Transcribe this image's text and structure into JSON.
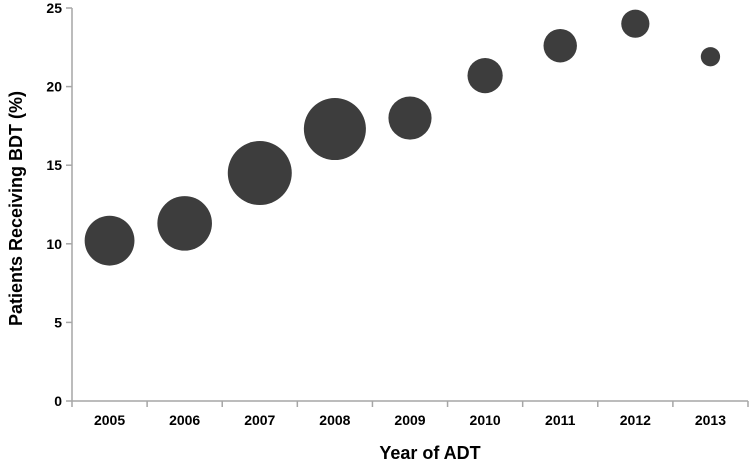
{
  "chart_data": {
    "type": "scatter",
    "title": "",
    "xlabel": "Year of ADT",
    "ylabel": "Patients Receiving BDT (%)",
    "categories": [
      "2005",
      "2006",
      "2007",
      "2008",
      "2009",
      "2010",
      "2011",
      "2012",
      "2013"
    ],
    "y_ticks": [
      "0",
      "5",
      "10",
      "15",
      "20",
      "25"
    ],
    "ylim": [
      0,
      25
    ],
    "grid": false,
    "legend": "none",
    "marker_color": "#3d3d3d",
    "axis_color": "#a6a6a6",
    "bubble_size_note_relative": [
      1.0,
      1.2,
      1.65,
      1.55,
      0.75,
      0.5,
      0.45,
      0.32,
      0.15
    ],
    "series": [
      {
        "values": [
          10.2,
          11.3,
          14.5,
          17.3,
          18.0,
          20.7,
          22.6,
          24.0,
          21.9
        ],
        "sizes": [
          1.0,
          1.2,
          1.65,
          1.55,
          0.75,
          0.5,
          0.45,
          0.32,
          0.15
        ]
      }
    ]
  }
}
